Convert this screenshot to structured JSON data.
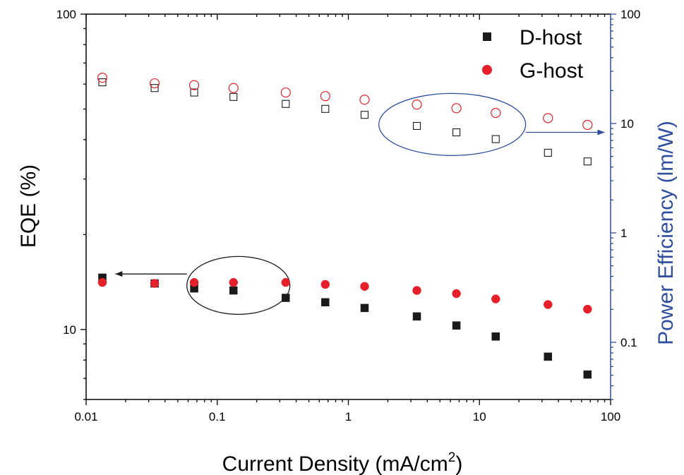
{
  "chart_data": {
    "type": "scatter",
    "xlabel": "Current Density (mA/cm",
    "xlabel_sup": "2",
    "xlabel_close": ")",
    "ylabel": "EQE (%)",
    "y2label": "Power Efficiency (lm/W)",
    "x_scale": "log",
    "y_scale": "log",
    "y2_scale": "log",
    "xlim": [
      0.01,
      100
    ],
    "ylim": [
      6,
      100
    ],
    "y2lim": [
      0.03,
      100
    ],
    "x_ticks": [
      0.01,
      0.1,
      1,
      10,
      100
    ],
    "x_tick_labels": [
      "0.01",
      "0.1",
      "1",
      "10",
      "100"
    ],
    "y_ticks": [
      10,
      100
    ],
    "y_tick_labels": [
      "10",
      "100"
    ],
    "y2_ticks": [
      0.1,
      1,
      10,
      100
    ],
    "y2_tick_labels": [
      "0.1",
      "1",
      "10",
      "100"
    ],
    "legend": {
      "position": "top-right",
      "entries": [
        {
          "label": "D-host",
          "marker": "square",
          "color": "#1a1a1a"
        },
        {
          "label": "G-host",
          "marker": "circle",
          "color": "#e5202a"
        }
      ]
    },
    "x": [
      0.0133,
      0.0333,
      0.0667,
      0.133,
      0.333,
      0.667,
      1.33,
      3.33,
      6.67,
      13.3,
      33.3,
      66.7
    ],
    "series": [
      {
        "name": "D-host",
        "axis": "left",
        "marker": "square",
        "filled": true,
        "color": "#1a1a1a",
        "values": [
          14.6,
          14.0,
          13.5,
          13.3,
          12.6,
          12.2,
          11.7,
          11.0,
          10.3,
          9.5,
          8.2,
          7.2
        ]
      },
      {
        "name": "G-host",
        "axis": "left",
        "marker": "circle",
        "filled": true,
        "color": "#e5202a",
        "values": [
          14.1,
          14.0,
          14.1,
          14.1,
          14.1,
          13.9,
          13.7,
          13.3,
          13.0,
          12.5,
          12.0,
          11.6
        ]
      },
      {
        "name": "D-host",
        "axis": "right",
        "marker": "square",
        "filled": false,
        "color": "#1a1a1a",
        "values": [
          23.8,
          21.1,
          19.2,
          17.5,
          15.1,
          13.6,
          12.0,
          9.5,
          8.3,
          7.2,
          5.4,
          4.5
        ]
      },
      {
        "name": "G-host",
        "axis": "right",
        "marker": "circle",
        "filled": false,
        "color": "#e5202a",
        "values": [
          26.2,
          23.3,
          22.4,
          21.1,
          19.2,
          17.8,
          16.5,
          14.9,
          13.8,
          12.5,
          11.2,
          9.7
        ]
      }
    ],
    "annotations": [
      {
        "type": "ellipse-arrow",
        "target_axis": "left",
        "color": "#1a1a1a",
        "center": {
          "x": 0.145,
          "y": 13.8
        },
        "arrow_to": {
          "x": 0.0167,
          "y": 15.0
        }
      },
      {
        "type": "ellipse-arrow",
        "target_axis": "right",
        "color": "#2e4d9e",
        "center": {
          "x": 6.2,
          "y": 9.8
        },
        "arrow_to": {
          "x": 90,
          "y": 8.3
        }
      }
    ],
    "colors": {
      "right_axis": "#2e4d9e",
      "d_host": "#1a1a1a",
      "g_host": "#e5202a"
    }
  }
}
